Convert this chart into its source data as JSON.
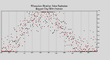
{
  "title": "Milwaukee Weather Solar Radiation",
  "subtitle": "Avg per Day W/m²/minute",
  "background_color": "#d8d8d8",
  "plot_bg_color": "#d8d8d8",
  "grid_color": "#999999",
  "x_min": 0,
  "x_max": 365,
  "y_min": 0,
  "y_max": 1.0,
  "y_ticks": [
    0.1,
    0.2,
    0.3,
    0.4,
    0.5,
    0.6,
    0.7,
    0.8,
    0.9,
    1.0
  ],
  "month_positions": [
    0,
    31,
    59,
    90,
    120,
    151,
    181,
    212,
    243,
    273,
    304,
    334
  ],
  "month_labels": [
    "Jan",
    "Feb",
    "Mar",
    "Apr",
    "May",
    "Jun",
    "Jul",
    "Aug",
    "Sep",
    "Oct",
    "Nov",
    "Dec"
  ]
}
